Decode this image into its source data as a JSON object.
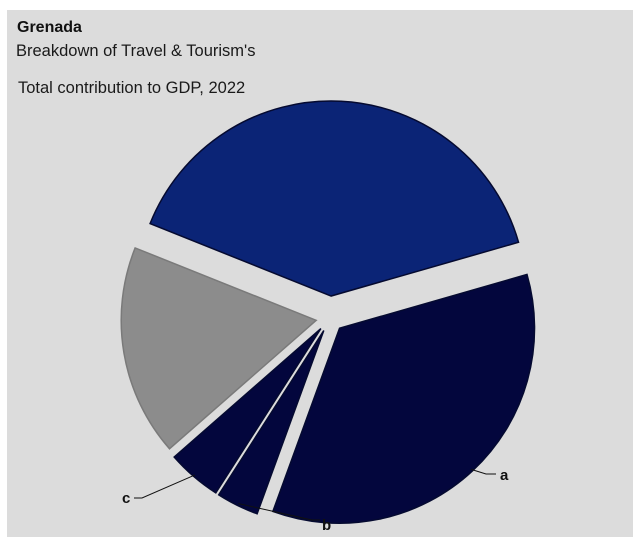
{
  "header": {
    "country": "Grenada",
    "subtitle_line1": "Breakdown of Travel & Tourism's",
    "subtitle_line2": "Total contribution to GDP, 2022"
  },
  "chart_data": {
    "type": "pie",
    "title": "Grenada",
    "subtitle": "Breakdown of Travel & Tourism's Total contribution to GDP, 2022",
    "slices": [
      {
        "label": "a",
        "value": 35,
        "color": "#03063d"
      },
      {
        "label": "b",
        "value": 3.5,
        "color": "#03063d"
      },
      {
        "label": "c",
        "value": 4.5,
        "color": "#03063d"
      },
      {
        "label": "",
        "value": 17.5,
        "color": "#8c8c8c"
      },
      {
        "label": "",
        "value": 39.5,
        "color": "#0b2476"
      }
    ],
    "exploded": true,
    "legend": "none"
  }
}
